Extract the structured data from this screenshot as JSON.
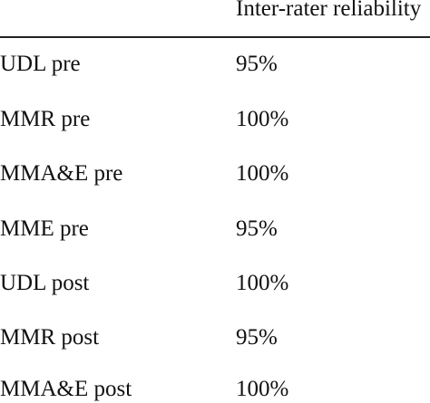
{
  "table": {
    "header": {
      "condition": "",
      "reliability": "Inter-rater reliability"
    },
    "rows": [
      {
        "condition": "UDL pre",
        "reliability": "95%"
      },
      {
        "condition": "MMR pre",
        "reliability": "100%"
      },
      {
        "condition": "MMA&E pre",
        "reliability": "100%"
      },
      {
        "condition": "MME pre",
        "reliability": "95%"
      },
      {
        "condition": "UDL post",
        "reliability": "100%"
      },
      {
        "condition": "MMR post",
        "reliability": "95%"
      },
      {
        "condition": "MMA&E post",
        "reliability": "100%"
      }
    ]
  }
}
